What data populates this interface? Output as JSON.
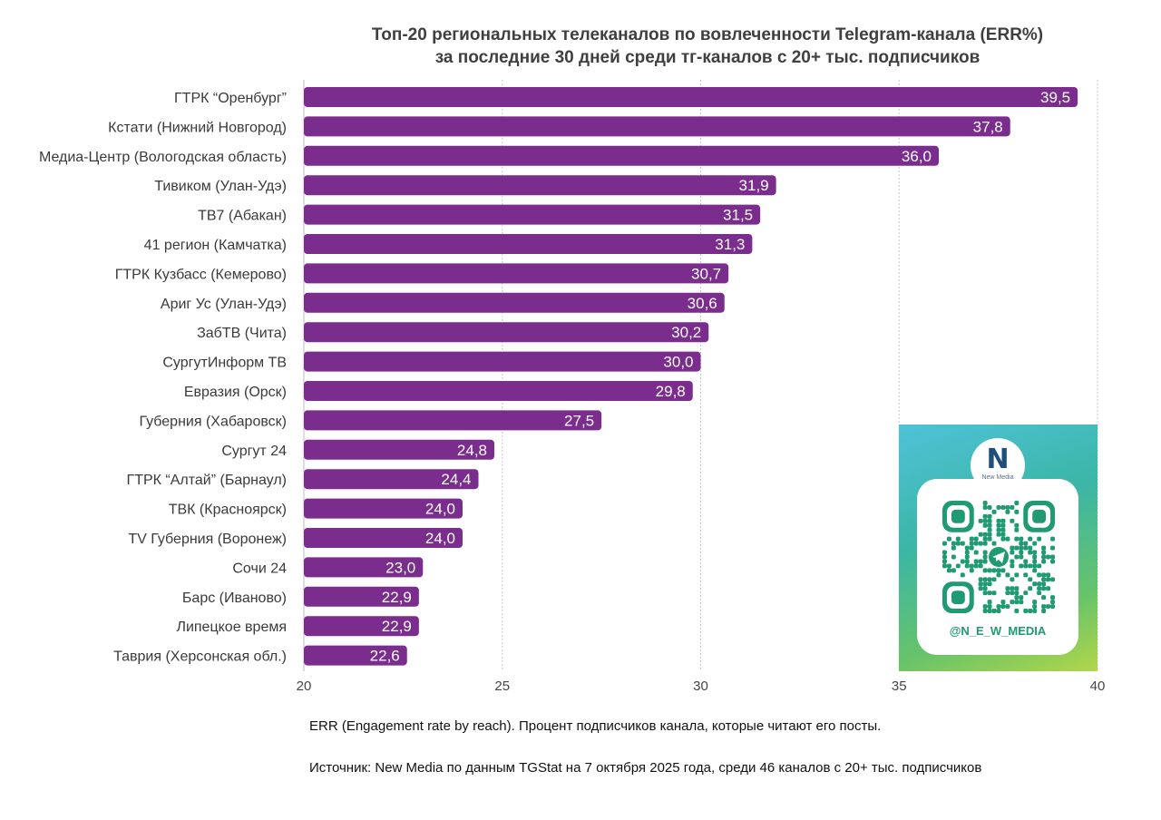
{
  "title_lines": [
    "Топ-20 региональных телеканалов по вовлеченности Telegram-канала (ERR%)",
    "за последние 30 дней среди тг-каналов с 20+ тыс. подписчиков"
  ],
  "chart_data": {
    "type": "bar",
    "orientation": "horizontal",
    "title": "Топ-20 региональных телеканалов по вовлеченности Telegram-канала (ERR%) за последние 30 дней среди тг-каналов с 20+ тыс. подписчиков",
    "categories": [
      "ГТРК “Оренбург”",
      "Кстати (Нижний Новгород)",
      "Медиа-Центр (Вологодская область)",
      "Тивиком (Улан-Удэ)",
      "ТВ7 (Абакан)",
      "41 регион (Камчатка)",
      "ГТРК Кузбасс (Кемерово)",
      "Ариг Ус (Улан-Удэ)",
      "ЗабТВ (Чита)",
      "СургутИнформ ТВ",
      "Евразия (Орск)",
      "Губерния (Хабаровск)",
      "Сургут 24",
      "ГТРК “Алтай” (Барнаул)",
      "ТВК (Красноярск)",
      "TV Губерния (Воронеж)",
      "Сочи 24",
      "Барс (Иваново)",
      "Липецкое время",
      "Таврия (Херсонская обл.)"
    ],
    "values": [
      39.5,
      37.8,
      36.0,
      31.9,
      31.5,
      31.3,
      30.7,
      30.6,
      30.2,
      30.0,
      29.8,
      27.5,
      24.8,
      24.4,
      24.0,
      24.0,
      23.0,
      22.9,
      22.9,
      22.6
    ],
    "value_labels": [
      "39,5",
      "37,8",
      "36,0",
      "31,9",
      "31,5",
      "31,3",
      "30,7",
      "30,6",
      "30,2",
      "30,0",
      "29,8",
      "27,5",
      "24,8",
      "24,4",
      "24,0",
      "24,0",
      "23,0",
      "22,9",
      "22,9",
      "22,6"
    ],
    "xlim": [
      20,
      40
    ],
    "xticks": [
      20,
      25,
      30,
      35,
      40
    ],
    "grid": true,
    "legend": "none",
    "bar_color": "#7b2d8e"
  },
  "notes": {
    "definition": "ERR (Engagement rate by reach). Процент подписчиков канала, которые читают его посты.",
    "source": "Источник: New Media по данным TGStat на 7 октября 2025 года, среди 46 каналов с 20+ тыс. подписчиков"
  },
  "promo": {
    "logo_letter": "N",
    "logo_text": "New Media",
    "handle": "@N_E_W_MEDIA",
    "qr_color": "#1f9a72",
    "icon": "qr-code-icon"
  }
}
